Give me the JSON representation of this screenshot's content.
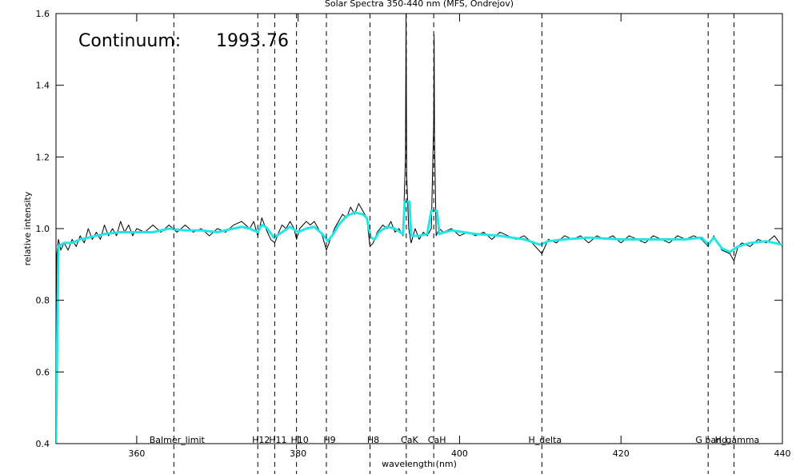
{
  "chart_data": {
    "type": "line",
    "title": "Solar Spectra 350-440 nm (MFS, Ondrejov)",
    "xlabel": "wavelength (nm)",
    "ylabel": "relative intensity",
    "annotations": [
      "Continuum:",
      "1993.76"
    ],
    "xlim": [
      350,
      440
    ],
    "ylim": [
      0.4,
      1.6
    ],
    "xticks": [
      360,
      380,
      400,
      420,
      440
    ],
    "yticks": [
      0.4,
      0.6,
      0.8,
      {
        "value": 1,
        "label": "1.0"
      },
      1.2,
      1.4,
      1.6
    ],
    "reference_lines": [
      {
        "x": 364.6,
        "label": "Balmer_limit"
      },
      {
        "x": 375.0,
        "label": "H12"
      },
      {
        "x": 377.1,
        "label": "H11"
      },
      {
        "x": 379.8,
        "label": "H10"
      },
      {
        "x": 383.5,
        "label": "H9"
      },
      {
        "x": 388.9,
        "label": "H8"
      },
      {
        "x": 393.4,
        "label": "CaK"
      },
      {
        "x": 396.8,
        "label": "CaH"
      },
      {
        "x": 410.2,
        "label": "H_delta"
      },
      {
        "x": 430.8,
        "label": "G band"
      },
      {
        "x": 434.0,
        "label": "H_gamma"
      }
    ],
    "series": [
      {
        "color": "#000000",
        "x": [
          350.0,
          350.1,
          350.3,
          350.6,
          351,
          351.5,
          352,
          352.5,
          353,
          353.5,
          354,
          354.5,
          355,
          355.5,
          356,
          356.5,
          357,
          357.5,
          358,
          358.5,
          359,
          359.5,
          360,
          361,
          362,
          363,
          364,
          365,
          366,
          367,
          368,
          369,
          370,
          371,
          372,
          373,
          374,
          374.5,
          375,
          375.5,
          376,
          376.6,
          377.1,
          377.6,
          378,
          378.5,
          379,
          379.5,
          379.8,
          380.2,
          381,
          381.5,
          382,
          382.5,
          383,
          383.5,
          384,
          384.5,
          385,
          385.5,
          386,
          386.5,
          387,
          387.5,
          388,
          388.5,
          388.9,
          389.3,
          389.8,
          390.5,
          391,
          391.5,
          392,
          392.5,
          393.0,
          393.3,
          393.37,
          393.45,
          393.7,
          394,
          394.5,
          395,
          395.5,
          396,
          396.5,
          396.8,
          396.85,
          396.9,
          397.1,
          397.5,
          398,
          399,
          400,
          401,
          402,
          403,
          404,
          405,
          406,
          407,
          408,
          409,
          410.2,
          411,
          412,
          413,
          414,
          415,
          416,
          417,
          418,
          419,
          420,
          421,
          422,
          423,
          424,
          425,
          426,
          427,
          428,
          429,
          430,
          430.8,
          431.5,
          432.5,
          433.5,
          434,
          434.5,
          435,
          436,
          437,
          438,
          439,
          440
        ],
        "values": [
          0.4,
          0.93,
          0.97,
          0.94,
          0.96,
          0.94,
          0.97,
          0.95,
          0.98,
          0.96,
          1.0,
          0.97,
          0.99,
          0.97,
          1.01,
          0.98,
          1.0,
          0.98,
          1.02,
          0.99,
          1.01,
          0.98,
          1.0,
          0.99,
          1.01,
          0.99,
          1.01,
          0.99,
          1.01,
          0.99,
          1.0,
          0.98,
          1.0,
          0.99,
          1.01,
          1.02,
          1.0,
          1.02,
          0.98,
          1.03,
          1.0,
          0.97,
          0.96,
          0.99,
          1.01,
          1.0,
          1.02,
          1.0,
          0.97,
          1.0,
          1.02,
          1.01,
          1.02,
          1.0,
          0.98,
          0.94,
          0.97,
          1.0,
          1.02,
          1.04,
          1.03,
          1.06,
          1.04,
          1.07,
          1.05,
          1.03,
          0.95,
          0.96,
          0.99,
          1.01,
          1.0,
          1.02,
          0.99,
          1.0,
          0.98,
          1.2,
          1.6,
          1.15,
          1.0,
          0.96,
          1.0,
          0.97,
          0.99,
          0.98,
          1.0,
          1.3,
          1.54,
          1.25,
          0.98,
          1.0,
          0.99,
          1.0,
          0.98,
          0.99,
          0.98,
          0.99,
          0.97,
          0.99,
          0.98,
          0.97,
          0.98,
          0.96,
          0.93,
          0.97,
          0.96,
          0.98,
          0.97,
          0.98,
          0.96,
          0.98,
          0.97,
          0.98,
          0.96,
          0.98,
          0.97,
          0.96,
          0.98,
          0.97,
          0.96,
          0.98,
          0.97,
          0.98,
          0.97,
          0.95,
          0.98,
          0.94,
          0.93,
          0.91,
          0.95,
          0.96,
          0.95,
          0.97,
          0.96,
          0.98,
          0.95
        ]
      },
      {
        "color": "#22e6e6",
        "x": [
          350.0,
          350.3,
          351,
          352,
          353,
          354,
          355,
          356,
          358,
          360,
          362,
          364,
          366,
          368,
          370,
          372,
          373,
          374,
          375,
          375.5,
          376,
          377,
          378,
          379,
          380,
          381,
          382,
          383,
          383.7,
          384.5,
          385,
          386,
          387,
          388,
          388.5,
          389,
          389.5,
          390,
          391,
          392,
          393,
          393.2,
          393.8,
          394,
          395,
          396,
          396.5,
          397.2,
          397.5,
          399,
          402,
          405,
          408,
          410,
          411,
          413,
          416,
          420,
          424,
          428,
          430,
          430.8,
          431.5,
          432.5,
          433.5,
          434.5,
          436,
          438,
          440
        ],
        "values": [
          0.4,
          0.95,
          0.96,
          0.96,
          0.97,
          0.975,
          0.98,
          0.985,
          0.99,
          0.99,
          0.99,
          1.0,
          0.995,
          0.995,
          0.99,
          1.0,
          1.005,
          1.0,
          0.99,
          1.01,
          1.005,
          0.975,
          0.99,
          1.005,
          0.99,
          1.0,
          1.005,
          0.985,
          0.965,
          0.99,
          1.01,
          1.035,
          1.045,
          1.04,
          1.03,
          0.975,
          0.97,
          0.99,
          1.005,
          1.0,
          0.985,
          1.075,
          1.075,
          0.98,
          0.98,
          0.985,
          1.05,
          1.05,
          0.985,
          0.995,
          0.985,
          0.98,
          0.97,
          0.955,
          0.965,
          0.97,
          0.975,
          0.97,
          0.97,
          0.97,
          0.975,
          0.955,
          0.975,
          0.945,
          0.935,
          0.95,
          0.96,
          0.965,
          0.955
        ]
      }
    ]
  }
}
